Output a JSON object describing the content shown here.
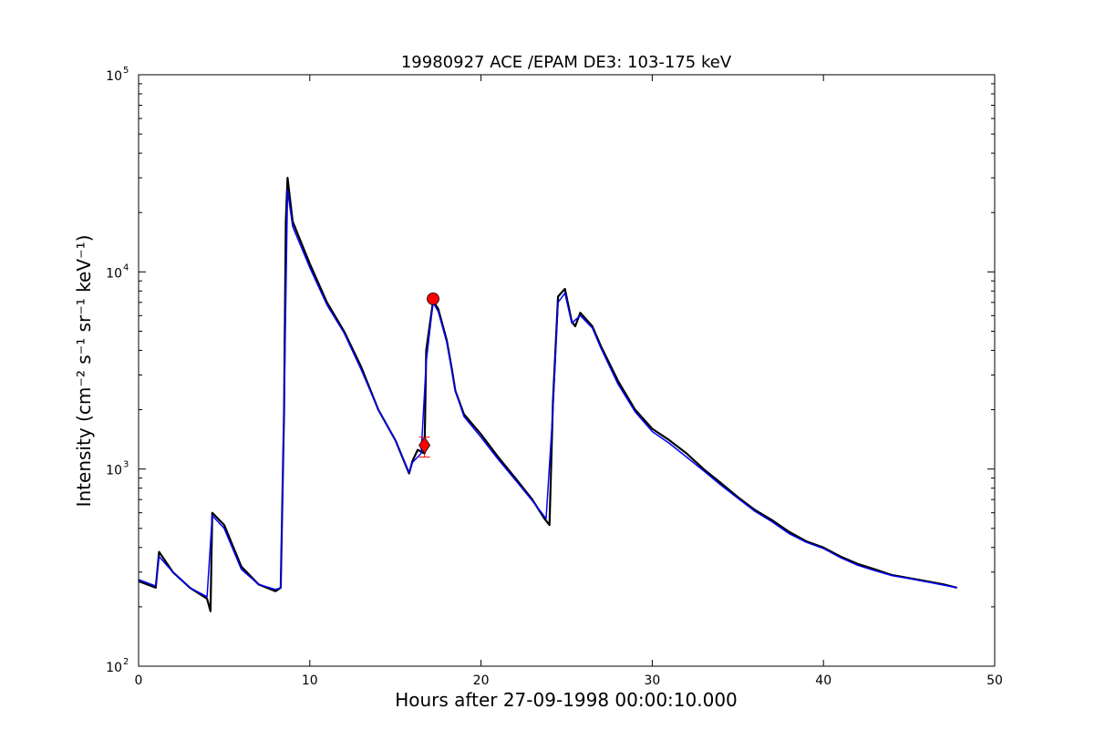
{
  "chart_data": {
    "type": "line",
    "title": "19980927 ACE /EPAM DE3: 103-175 keV",
    "xlabel": "Hours after 27-09-1998 00:00:10.000",
    "ylabel": "Intensity (cm⁻² s⁻¹ sr⁻¹ keV⁻¹)",
    "xlim": [
      0,
      50
    ],
    "ylim": [
      100,
      100000
    ],
    "yscale": "log",
    "grid": false,
    "x_ticks": [
      "0",
      "10",
      "20",
      "30",
      "40",
      "50"
    ],
    "y_ticks": [
      {
        "base": "10",
        "exp": "2"
      },
      {
        "base": "10",
        "exp": "3"
      },
      {
        "base": "10",
        "exp": "4"
      },
      {
        "base": "10",
        "exp": "5"
      }
    ],
    "series": [
      {
        "role": "raw",
        "color": "#000000",
        "points": [
          [
            0,
            270
          ],
          [
            1,
            250
          ],
          [
            1.2,
            380
          ],
          [
            2,
            300
          ],
          [
            3,
            250
          ],
          [
            4,
            220
          ],
          [
            4.2,
            190
          ],
          [
            4.3,
            600
          ],
          [
            5,
            520
          ],
          [
            6,
            320
          ],
          [
            7,
            260
          ],
          [
            8,
            240
          ],
          [
            8.3,
            250
          ],
          [
            8.5,
            2000
          ],
          [
            8.6,
            18000
          ],
          [
            8.7,
            30000
          ],
          [
            9,
            18000
          ],
          [
            10,
            11000
          ],
          [
            11,
            7000
          ],
          [
            12,
            5000
          ],
          [
            13,
            3300
          ],
          [
            14,
            2000
          ],
          [
            15,
            1400
          ],
          [
            15.8,
            950
          ],
          [
            16,
            1100
          ],
          [
            16.3,
            1250
          ],
          [
            16.7,
            1200
          ],
          [
            16.8,
            4000
          ],
          [
            17.2,
            7100
          ],
          [
            17.5,
            6500
          ],
          [
            18,
            4500
          ],
          [
            18.3,
            3200
          ],
          [
            18.5,
            2500
          ],
          [
            19,
            1900
          ],
          [
            20,
            1500
          ],
          [
            21,
            1150
          ],
          [
            22,
            900
          ],
          [
            23,
            700
          ],
          [
            23.7,
            560
          ],
          [
            24,
            520
          ],
          [
            24.2,
            2200
          ],
          [
            24.5,
            7500
          ],
          [
            24.9,
            8200
          ],
          [
            25.3,
            5600
          ],
          [
            25.5,
            5300
          ],
          [
            25.8,
            6200
          ],
          [
            26.5,
            5300
          ],
          [
            27,
            4200
          ],
          [
            28,
            2800
          ],
          [
            29,
            2000
          ],
          [
            30,
            1600
          ],
          [
            31,
            1400
          ],
          [
            32,
            1200
          ],
          [
            33,
            1000
          ],
          [
            34,
            850
          ],
          [
            35,
            720
          ],
          [
            36,
            620
          ],
          [
            37,
            550
          ],
          [
            38,
            480
          ],
          [
            39,
            430
          ],
          [
            40,
            400
          ],
          [
            41,
            360
          ],
          [
            42,
            330
          ],
          [
            43,
            310
          ],
          [
            44,
            290
          ],
          [
            45,
            280
          ],
          [
            46,
            270
          ],
          [
            47,
            260
          ],
          [
            47.8,
            250
          ]
        ]
      },
      {
        "role": "smoothed",
        "color": "#0000ff",
        "points": [
          [
            0,
            275
          ],
          [
            1,
            255
          ],
          [
            1.2,
            360
          ],
          [
            2,
            300
          ],
          [
            3,
            250
          ],
          [
            4,
            225
          ],
          [
            4.3,
            580
          ],
          [
            5,
            500
          ],
          [
            6,
            310
          ],
          [
            7,
            260
          ],
          [
            8,
            245
          ],
          [
            8.3,
            250
          ],
          [
            8.5,
            2000
          ],
          [
            8.7,
            26000
          ],
          [
            9,
            17000
          ],
          [
            10,
            10500
          ],
          [
            11,
            6800
          ],
          [
            12,
            4900
          ],
          [
            13,
            3200
          ],
          [
            14,
            2000
          ],
          [
            15,
            1400
          ],
          [
            15.8,
            960
          ],
          [
            16,
            1080
          ],
          [
            16.5,
            1200
          ],
          [
            16.8,
            3500
          ],
          [
            17.2,
            7000
          ],
          [
            17.5,
            6300
          ],
          [
            18,
            4400
          ],
          [
            18.5,
            2500
          ],
          [
            19,
            1850
          ],
          [
            20,
            1450
          ],
          [
            21,
            1120
          ],
          [
            22,
            880
          ],
          [
            23,
            690
          ],
          [
            23.8,
            560
          ],
          [
            24.2,
            2000
          ],
          [
            24.5,
            7000
          ],
          [
            24.9,
            7800
          ],
          [
            25.3,
            5500
          ],
          [
            25.8,
            6000
          ],
          [
            26.5,
            5200
          ],
          [
            27,
            4100
          ],
          [
            28,
            2700
          ],
          [
            29,
            1950
          ],
          [
            30,
            1550
          ],
          [
            31,
            1350
          ],
          [
            32,
            1150
          ],
          [
            33,
            980
          ],
          [
            34,
            830
          ],
          [
            35,
            710
          ],
          [
            36,
            610
          ],
          [
            37,
            540
          ],
          [
            38,
            470
          ],
          [
            39,
            425
          ],
          [
            40,
            395
          ],
          [
            41,
            355
          ],
          [
            42,
            325
          ],
          [
            43,
            305
          ],
          [
            44,
            288
          ],
          [
            45,
            278
          ],
          [
            46,
            268
          ],
          [
            47,
            258
          ],
          [
            47.8,
            250
          ]
        ]
      }
    ],
    "markers": [
      {
        "shape": "circle",
        "color": "#ff0000",
        "x": 17.2,
        "y": 7300
      },
      {
        "shape": "diamond",
        "color": "#ff0000",
        "x": 16.7,
        "y": 1320,
        "errorbar": [
          1150,
          1450
        ]
      }
    ]
  }
}
